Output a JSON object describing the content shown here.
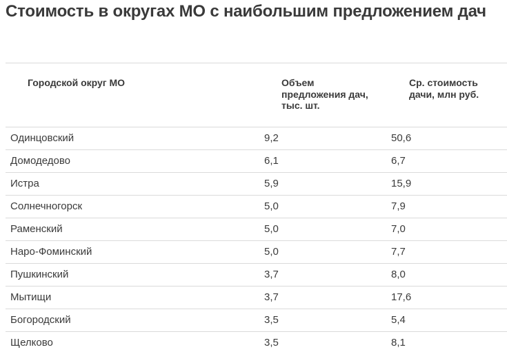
{
  "title": "Стоимость в округах МО с наибольшим предложением дач",
  "table": {
    "headers": [
      "Городской округ МО",
      "Объем предложения дач, тыс. шт.",
      "Ср. стоимость дачи, млн руб."
    ],
    "rows": [
      [
        "Одинцовский",
        "9,2",
        "50,6"
      ],
      [
        "Домодедово",
        "6,1",
        "6,7"
      ],
      [
        "Истра",
        "5,9",
        "15,9"
      ],
      [
        "Солнечногорск",
        "5,0",
        "7,9"
      ],
      [
        "Раменский",
        "5,0",
        "7,0"
      ],
      [
        "Наро-Фоминский",
        "5,0",
        "7,7"
      ],
      [
        "Пушкинский",
        "3,7",
        "8,0"
      ],
      [
        "Мытищи",
        "3,7",
        "17,6"
      ],
      [
        "Богородский",
        "3,5",
        "5,4"
      ],
      [
        "Щелково",
        "3,5",
        "8,1"
      ]
    ]
  }
}
